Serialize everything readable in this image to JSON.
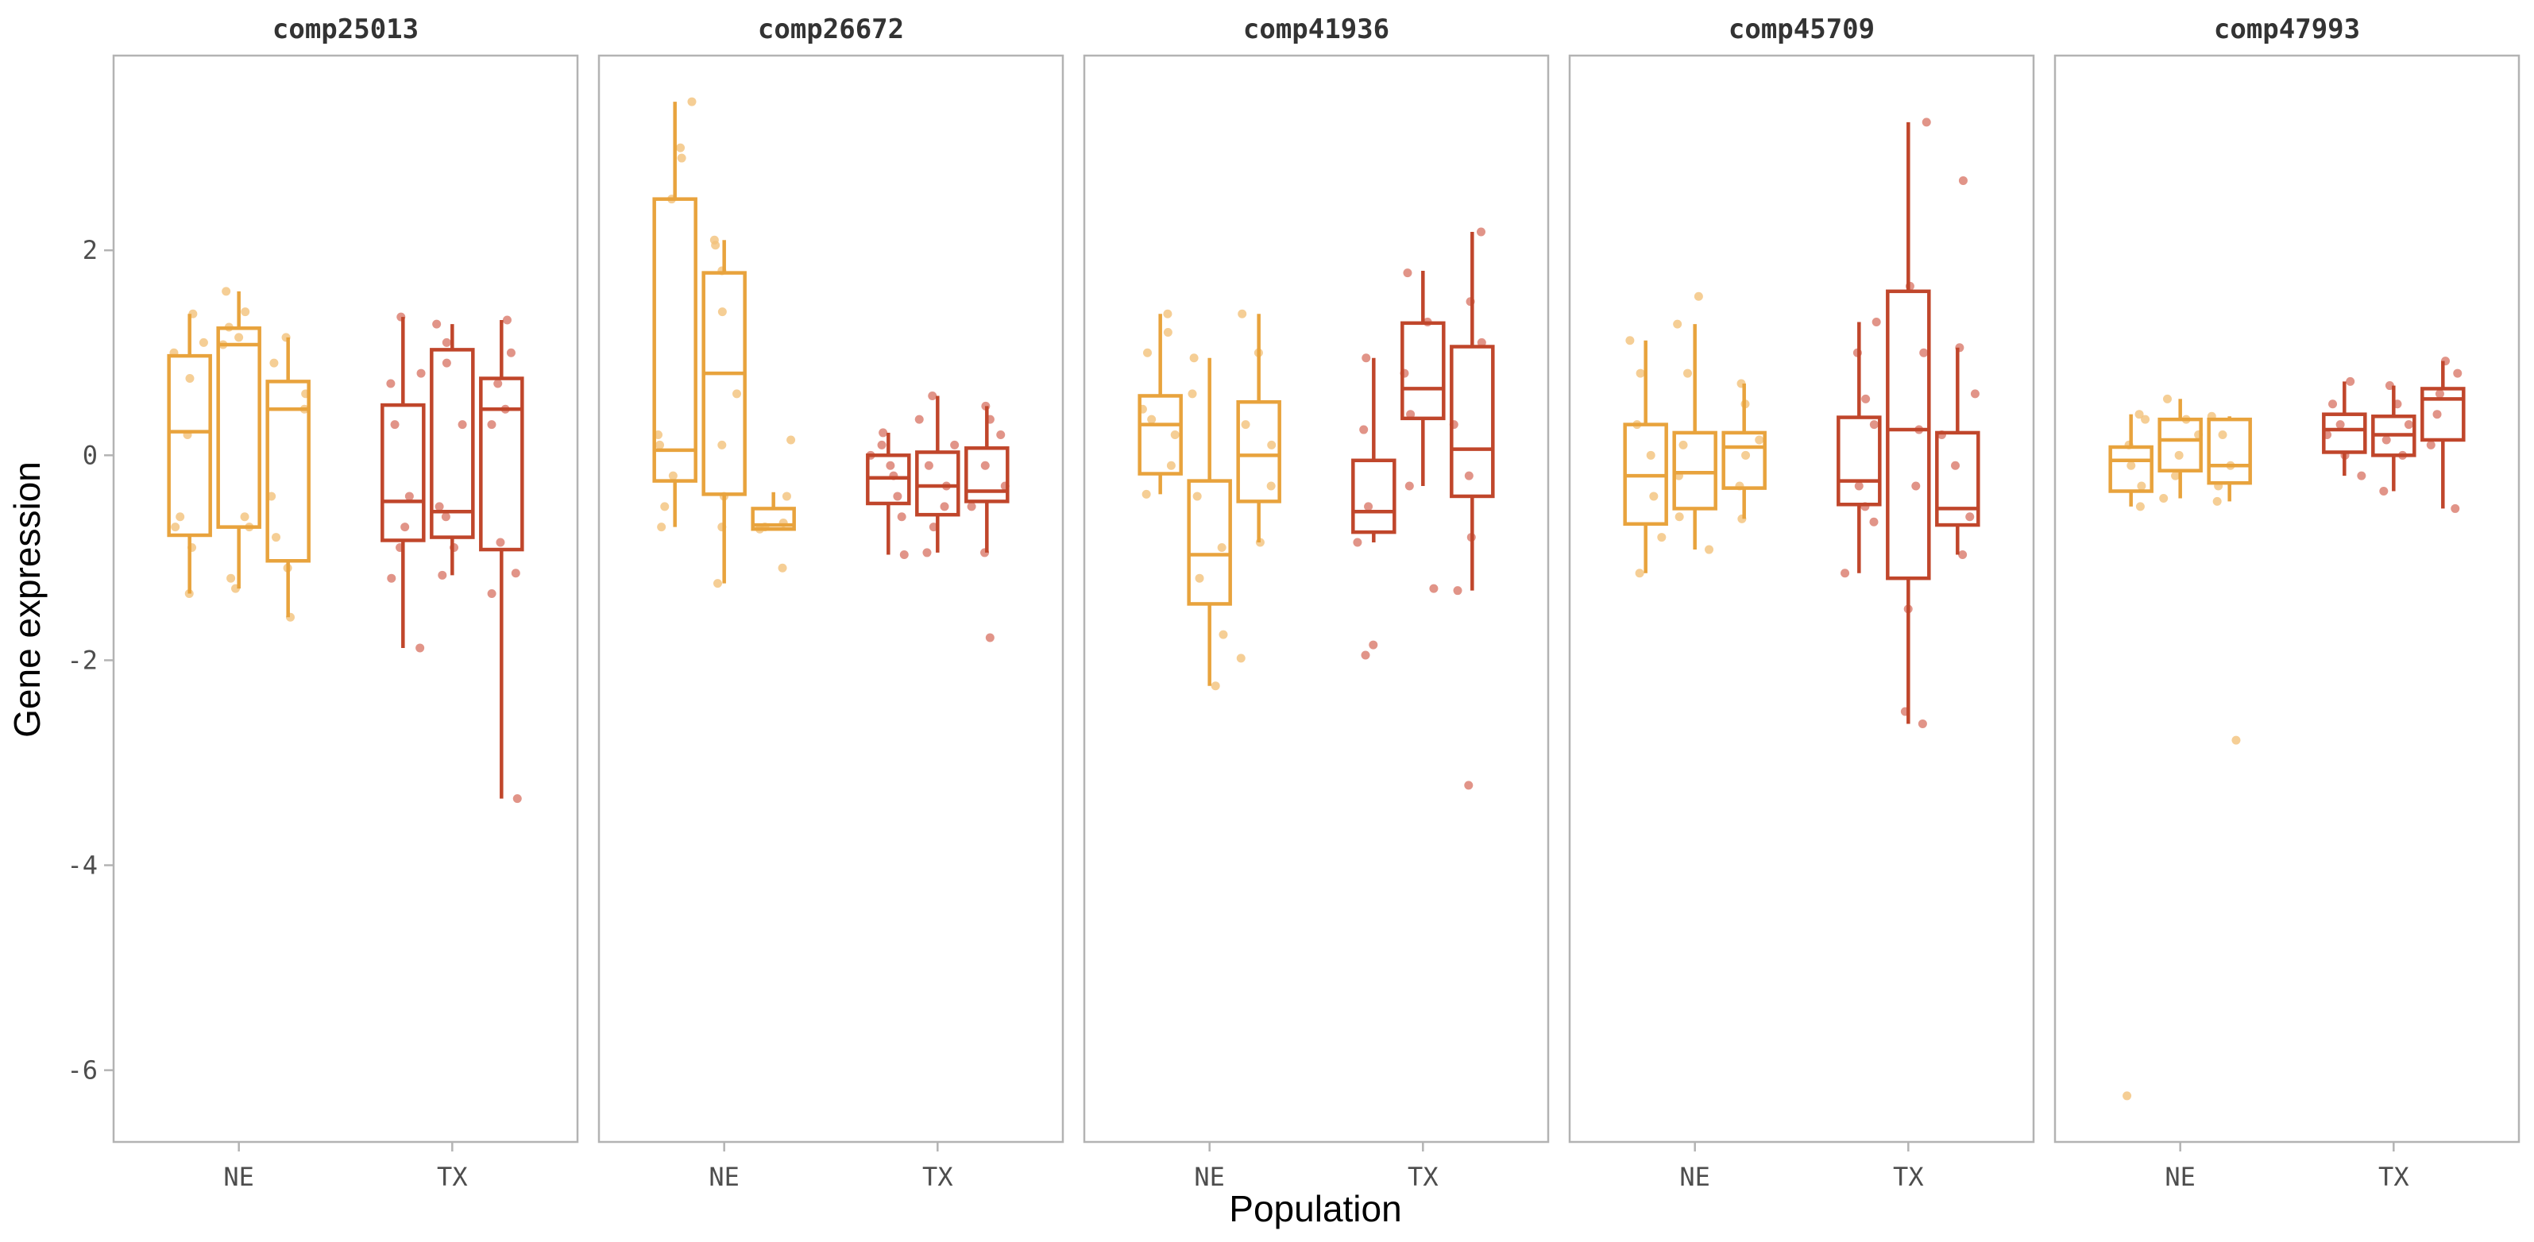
{
  "chart_data": {
    "type": "boxplot",
    "xlabel": "Population",
    "ylabel": "Gene expression",
    "ylim": [
      -6.7,
      3.9
    ],
    "y_ticks": [
      "2",
      "0",
      "-2",
      "-4",
      "-6"
    ],
    "y_tick_values": [
      2,
      0,
      -2,
      -4,
      -6
    ],
    "categories": [
      "NE",
      "TX"
    ],
    "grid": false,
    "legend": "none",
    "colors": {
      "NE": "#E8A33D",
      "TX": "#C0462B"
    },
    "point_colors": {
      "NE": "#F2C27A",
      "TX": "#D9796A"
    },
    "panels": [
      {
        "title": "comp25013",
        "groups": [
          {
            "population": "NE",
            "boxes": [
              {
                "q1": -0.78,
                "median": 0.23,
                "q3": 0.97,
                "whisker_low": -1.35,
                "whisker_high": 1.38
              },
              {
                "q1": -0.7,
                "median": 1.08,
                "q3": 1.24,
                "whisker_low": -1.3,
                "whisker_high": 1.6
              },
              {
                "q1": -1.03,
                "median": 0.45,
                "q3": 0.72,
                "whisker_low": -1.58,
                "whisker_high": 1.15
              }
            ],
            "points": [
              [
                [
                  -1.35,
                  -0.9,
                  -0.7,
                  -0.6,
                  0.2,
                  0.75,
                  1.0,
                  1.1,
                  1.38
                ],
                [
                  -1.3,
                  -1.2,
                  -0.7,
                  -0.6,
                  1.08,
                  1.15,
                  1.25,
                  1.4,
                  1.6
                ],
                [
                  -1.58,
                  -1.1,
                  -0.8,
                  -0.4,
                  0.45,
                  0.6,
                  0.9,
                  1.15
                ]
              ]
            ]
          },
          {
            "population": "TX",
            "boxes": [
              {
                "q1": -0.83,
                "median": -0.45,
                "q3": 0.49,
                "whisker_low": -1.88,
                "whisker_high": 1.35
              },
              {
                "q1": -0.8,
                "median": -0.55,
                "q3": 1.03,
                "whisker_low": -1.17,
                "whisker_high": 1.28
              },
              {
                "q1": -0.92,
                "median": 0.45,
                "q3": 0.75,
                "whisker_low": -3.35,
                "whisker_high": 1.32
              }
            ],
            "points": [
              [
                [
                  -1.88,
                  -1.2,
                  -0.9,
                  -0.7,
                  -0.4,
                  0.3,
                  0.7,
                  0.8,
                  1.35
                ],
                [
                  -1.17,
                  -0.9,
                  -0.6,
                  -0.5,
                  0.3,
                  0.9,
                  1.1,
                  1.28
                ],
                [
                  -3.35,
                  -1.35,
                  -1.15,
                  -0.85,
                  0.3,
                  0.45,
                  0.7,
                  1.0,
                  1.32
                ]
              ]
            ]
          }
        ]
      },
      {
        "title": "comp26672",
        "groups": [
          {
            "population": "NE",
            "boxes": [
              {
                "q1": -0.25,
                "median": 0.05,
                "q3": 2.5,
                "whisker_low": -0.7,
                "whisker_high": 3.45
              },
              {
                "q1": -0.38,
                "median": 0.8,
                "q3": 1.78,
                "whisker_low": -1.25,
                "whisker_high": 2.1
              },
              {
                "q1": -0.72,
                "median": -0.68,
                "q3": -0.52,
                "whisker_low": -0.72,
                "whisker_high": -0.36
              }
            ],
            "points": [
              [
                [
                  -0.7,
                  -0.5,
                  -0.2,
                  0.1,
                  0.2,
                  2.5,
                  2.9,
                  3.0,
                  3.45
                ],
                [
                  -1.25,
                  -0.7,
                  -0.4,
                  0.1,
                  0.6,
                  1.4,
                  1.8,
                  2.05,
                  2.1
                ],
                [
                  -1.1,
                  -0.72,
                  -0.7,
                  -0.66,
                  -0.4,
                  0.15
                ]
              ]
            ]
          },
          {
            "population": "TX",
            "boxes": [
              {
                "q1": -0.47,
                "median": -0.22,
                "q3": 0.0,
                "whisker_low": -0.97,
                "whisker_high": 0.22
              },
              {
                "q1": -0.58,
                "median": -0.3,
                "q3": 0.03,
                "whisker_low": -0.95,
                "whisker_high": 0.58
              },
              {
                "q1": -0.45,
                "median": -0.35,
                "q3": 0.07,
                "whisker_low": -0.95,
                "whisker_high": 0.48
              }
            ],
            "points": [
              [
                [
                  -0.97,
                  -0.6,
                  -0.4,
                  -0.2,
                  -0.1,
                  0.0,
                  0.1,
                  0.22
                ],
                [
                  -0.95,
                  -0.7,
                  -0.5,
                  -0.3,
                  -0.1,
                  0.1,
                  0.35,
                  0.58
                ],
                [
                  -1.78,
                  -0.95,
                  -0.5,
                  -0.3,
                  -0.1,
                  0.2,
                  0.35,
                  0.48
                ]
              ]
            ]
          }
        ]
      },
      {
        "title": "comp41936",
        "groups": [
          {
            "population": "NE",
            "boxes": [
              {
                "q1": -0.18,
                "median": 0.3,
                "q3": 0.58,
                "whisker_low": -0.38,
                "whisker_high": 1.38
              },
              {
                "q1": -1.45,
                "median": -0.97,
                "q3": -0.25,
                "whisker_low": -2.25,
                "whisker_high": 0.95
              },
              {
                "q1": -0.45,
                "median": 0.0,
                "q3": 0.52,
                "whisker_low": -0.85,
                "whisker_high": 1.38
              }
            ],
            "points": [
              [
                [
                  -0.38,
                  -0.1,
                  0.2,
                  0.35,
                  0.45,
                  1.0,
                  1.2,
                  1.38
                ],
                [
                  -2.25,
                  -1.75,
                  -1.2,
                  -0.9,
                  -0.4,
                  0.6,
                  0.95
                ],
                [
                  -1.98,
                  -0.85,
                  -0.3,
                  0.1,
                  0.3,
                  1.0,
                  1.38
                ]
              ]
            ]
          },
          {
            "population": "TX",
            "boxes": [
              {
                "q1": -0.75,
                "median": -0.55,
                "q3": -0.05,
                "whisker_low": -0.85,
                "whisker_high": 0.95
              },
              {
                "q1": 0.36,
                "median": 0.65,
                "q3": 1.29,
                "whisker_low": -0.3,
                "whisker_high": 1.8
              },
              {
                "q1": -0.4,
                "median": 0.06,
                "q3": 1.06,
                "whisker_low": -1.32,
                "whisker_high": 2.18
              }
            ],
            "points": [
              [
                [
                  -1.95,
                  -1.85,
                  -0.85,
                  -0.5,
                  0.25,
                  0.95
                ],
                [
                  -1.3,
                  -0.3,
                  0.4,
                  0.8,
                  1.3,
                  1.78
                ],
                [
                  -3.22,
                  -1.32,
                  -0.8,
                  -0.2,
                  0.3,
                  1.1,
                  1.5,
                  2.18
                ]
              ]
            ]
          }
        ]
      },
      {
        "title": "comp45709",
        "groups": [
          {
            "population": "NE",
            "boxes": [
              {
                "q1": -0.67,
                "median": -0.2,
                "q3": 0.3,
                "whisker_low": -1.15,
                "whisker_high": 1.12
              },
              {
                "q1": -0.52,
                "median": -0.17,
                "q3": 0.22,
                "whisker_low": -0.92,
                "whisker_high": 1.28
              },
              {
                "q1": -0.32,
                "median": 0.08,
                "q3": 0.22,
                "whisker_low": -0.62,
                "whisker_high": 0.7
              }
            ],
            "points": [
              [
                [
                  -1.15,
                  -0.8,
                  -0.4,
                  0.0,
                  0.3,
                  0.8,
                  1.12
                ],
                [
                  -0.92,
                  -0.6,
                  -0.2,
                  0.1,
                  0.8,
                  1.28,
                  1.55
                ],
                [
                  -0.62,
                  -0.3,
                  0.0,
                  0.15,
                  0.5,
                  0.7
                ]
              ]
            ]
          },
          {
            "population": "TX",
            "boxes": [
              {
                "q1": -0.48,
                "median": -0.25,
                "q3": 0.37,
                "whisker_low": -1.15,
                "whisker_high": 1.3
              },
              {
                "q1": -1.2,
                "median": 0.25,
                "q3": 1.6,
                "whisker_low": -2.62,
                "whisker_high": 3.25
              },
              {
                "q1": -0.68,
                "median": -0.52,
                "q3": 0.22,
                "whisker_low": -0.97,
                "whisker_high": 1.05
              }
            ],
            "points": [
              [
                [
                  -1.15,
                  -0.65,
                  -0.5,
                  -0.3,
                  0.3,
                  0.55,
                  1.0,
                  1.3
                ],
                [
                  -2.62,
                  -2.5,
                  -1.5,
                  -0.3,
                  0.25,
                  1.0,
                  1.65,
                  3.25
                ],
                [
                  -0.97,
                  -0.6,
                  -0.1,
                  0.2,
                  0.6,
                  1.05,
                  2.68
                ]
              ]
            ]
          }
        ]
      },
      {
        "title": "comp47993",
        "groups": [
          {
            "population": "NE",
            "boxes": [
              {
                "q1": -0.35,
                "median": -0.05,
                "q3": 0.08,
                "whisker_low": -0.5,
                "whisker_high": 0.4
              },
              {
                "q1": -0.15,
                "median": 0.15,
                "q3": 0.35,
                "whisker_low": -0.42,
                "whisker_high": 0.55
              },
              {
                "q1": -0.27,
                "median": -0.1,
                "q3": 0.35,
                "whisker_low": -0.45,
                "whisker_high": 0.38
              }
            ],
            "points": [
              [
                [
                  -6.25,
                  -0.5,
                  -0.3,
                  -0.1,
                  0.1,
                  0.35,
                  0.4
                ],
                [
                  -0.42,
                  -0.2,
                  0.0,
                  0.2,
                  0.35,
                  0.55
                ],
                [
                  -2.78,
                  -0.45,
                  -0.3,
                  -0.1,
                  0.2,
                  0.38
                ]
              ]
            ]
          },
          {
            "population": "TX",
            "boxes": [
              {
                "q1": 0.03,
                "median": 0.25,
                "q3": 0.4,
                "whisker_low": -0.2,
                "whisker_high": 0.72
              },
              {
                "q1": 0.0,
                "median": 0.2,
                "q3": 0.38,
                "whisker_low": -0.35,
                "whisker_high": 0.68
              },
              {
                "q1": 0.15,
                "median": 0.55,
                "q3": 0.65,
                "whisker_low": -0.52,
                "whisker_high": 0.92
              }
            ],
            "points": [
              [
                [
                  -0.2,
                  0.0,
                  0.2,
                  0.3,
                  0.5,
                  0.72
                ],
                [
                  -0.35,
                  0.0,
                  0.15,
                  0.3,
                  0.5,
                  0.68
                ],
                [
                  -0.52,
                  0.1,
                  0.4,
                  0.6,
                  0.8,
                  0.92
                ]
              ]
            ]
          }
        ]
      }
    ]
  }
}
